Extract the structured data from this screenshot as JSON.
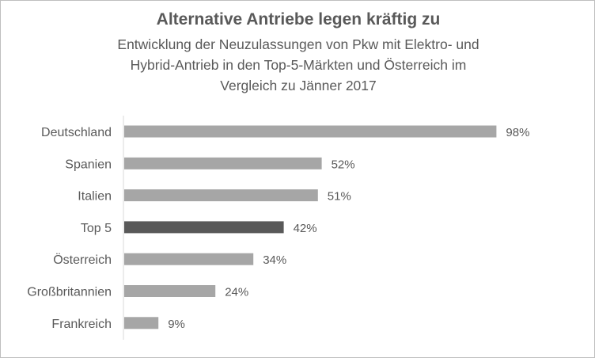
{
  "chart_data": {
    "type": "bar",
    "orientation": "horizontal",
    "title": "Alternative Antriebe legen kräftig zu",
    "subtitle_lines": [
      "Entwicklung der Neuzulassungen  von Pkw mit Elektro- und",
      "Hybrid-Antrieb in den Top-5-Märkten und Österreich im",
      "Vergleich zu Jänner 2017"
    ],
    "categories": [
      "Deutschland",
      "Spanien",
      "Italien",
      "Top 5",
      "Österreich",
      "Großbritannien",
      "Frankreich"
    ],
    "values": [
      98,
      52,
      51,
      42,
      34,
      24,
      9
    ],
    "value_labels": [
      "98%",
      "52%",
      "51%",
      "42%",
      "34%",
      "24%",
      "9%"
    ],
    "unit": "%",
    "xlim": [
      0,
      100
    ],
    "highlight_category": "Top 5",
    "colors": {
      "bar": "#a6a6a6",
      "highlight": "#595959",
      "text": "#595959",
      "axis": "#d9d9d9"
    },
    "grid": false,
    "legend": "none"
  }
}
